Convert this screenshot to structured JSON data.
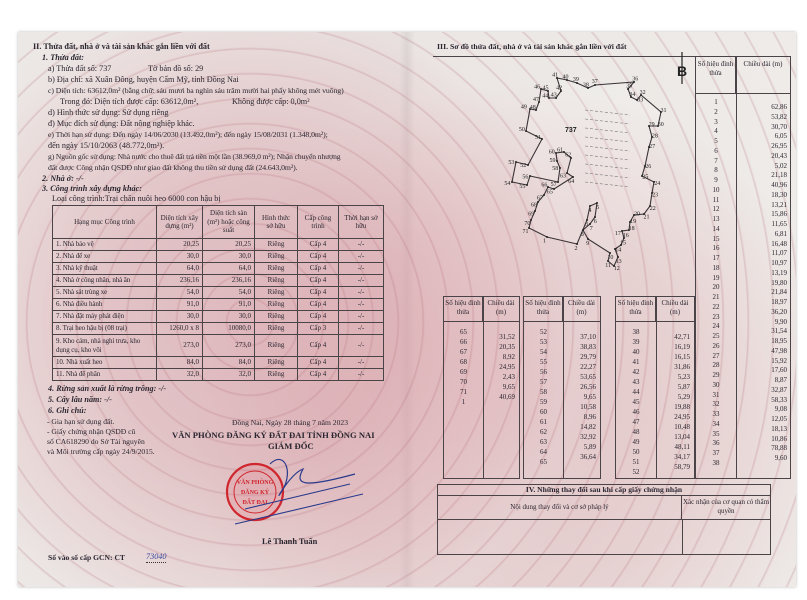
{
  "left": {
    "heading": "II. Thửa đất, nhà ở và tài sản khác gắn liền với đất",
    "s1": "1. Thửa đất:",
    "a": "a) Thửa đất số: 737",
    "a_map": "Tờ bản đồ số: 29",
    "b": "b) Địa chỉ: xã Xuân Đông, huyện Cẩm Mỹ, tỉnh Đồng Nai",
    "c": "c) Diện tích: 63612,0m² (bằng chữ: sáu mươi ba nghìn sáu trăm mười hai phẩy không mét vuông)",
    "c2": "Trong đó: Diện tích được cấp: 63612,0m²,",
    "c3": "Không được cấp: 0,0m²",
    "d": "d) Hình thức sử dụng: Sử dụng riêng",
    "dd": "đ) Mục đích sử dụng: Đất nông nghiệp khác.",
    "e": "e) Thời hạn sử dụng: Đến ngày 14/06/2030 (13.492,0m²); đến ngày 15/08/2031 (1.348,0m²);",
    "e2": "đến ngày 15/10/2063 (48.772,0m²).",
    "g": "g) Nguồn gốc sử dụng: Nhà nước cho thuê đất trả tiền một lần (38.969,0 m²); Nhận chuyển nhượng",
    "g2": "đất được Công nhận QSDĐ như giao đất không thu tiền sử dụng đất (24.643,0m²).",
    "s2": "2. Nhà ở: -/-",
    "s3": "3. Công trình xây dựng khác:",
    "type": "Loại công trình:Trại chăn nuôi heo 6000 con hậu bị",
    "table": {
      "headers": [
        "Hạng mục Công trình",
        "Diện tích xây dựng (m²)",
        "Diện tích sàn (m²) hoặc công suất",
        "Hình thức sở hữu",
        "Cấp công trình",
        "Thời hạn sở hữu"
      ],
      "rows": [
        [
          "1. Nhà bảo vệ",
          "20,25",
          "20,25",
          "Riêng",
          "Cấp 4",
          "-/-"
        ],
        [
          "2. Nhà để xe",
          "30,0",
          "30,0",
          "Riêng",
          "Cấp 4",
          "-/-"
        ],
        [
          "3. Nhà kỹ thuật",
          "64,0",
          "64,0",
          "Riêng",
          "Cấp 4",
          "-/-"
        ],
        [
          "4. Nhà ở công nhân, nhà ăn",
          "236,16",
          "236,16",
          "Riêng",
          "Cấp 4",
          "-/-"
        ],
        [
          "5. Nhà sát trùng xe",
          "54,0",
          "54,0",
          "Riêng",
          "Cấp 4",
          "-/-"
        ],
        [
          "6. Nhà điều hành",
          "91,0",
          "91,0",
          "Riêng",
          "Cấp 4",
          "-/-"
        ],
        [
          "7. Nhà đặt máy phát điện",
          "30,0",
          "30,0",
          "Riêng",
          "Cấp 4",
          "-/-"
        ],
        [
          "8. Trại heo hậu bị (08 trại)",
          "1260,0 x 8",
          "10080,0",
          "Riêng",
          "Cấp 3",
          "-/-"
        ],
        [
          "9. Kho cám, nhà nghỉ trưa, kho dụng cụ, kho vôi",
          "273,0",
          "273,0",
          "Riêng",
          "Cấp 4",
          "-/-"
        ],
        [
          "10. Nhà xuất heo",
          "84,0",
          "84,0",
          "Riêng",
          "Cấp 4",
          "-/-"
        ],
        [
          "11. Nhà để phân",
          "32,0",
          "32,0",
          "Riêng",
          "Cấp 4",
          "-/-"
        ]
      ]
    },
    "s4": "4. Rừng sản xuất là rừng trồng: -/-",
    "s5": "5. Cây lâu năm: -/-",
    "s6": "6. Ghi chú:",
    "n1": "- Gia hạn sử dụng đất.",
    "n2": "- Giấy chứng nhận QSDĐ cũ",
    "n3": "số CA618290 do Sở Tài nguyên",
    "n4": "và Môi trường cấp ngày 24/9/2015.",
    "date": "Đồng Nai, Ngày 28 tháng 7 năm 2023",
    "office": "VĂN PHÒNG ĐĂNG KÝ ĐẤT ĐAI TỈNH ĐỒNG NAI",
    "role": "GIÁM ĐỐC",
    "signer": "Lê Thanh Tuấn",
    "stamp": "VĂN PHÒNG ĐĂNG KÝ ĐẤT ĐAI",
    "reg": "Số vào sổ cấp GCN: CT",
    "reg_no": "73040"
  },
  "right": {
    "heading": "III. Sơ đồ thửa đất, nhà ở và tài sản khác gắn liền với đất",
    "north": "B",
    "parcel": "737",
    "col_h1": "Số hiệu đỉnh thửa",
    "col_h2": "Chiều dài (m)",
    "main_ids": [
      "1",
      "2",
      "3",
      "4",
      "5",
      "6",
      "7",
      "8",
      "9",
      "10",
      "11",
      "12",
      "13",
      "14",
      "15",
      "16",
      "17",
      "18",
      "19",
      "20",
      "21",
      "22",
      "23",
      "24",
      "25",
      "26",
      "27",
      "28",
      "29",
      "30",
      "31",
      "32",
      "33",
      "34",
      "35",
      "36",
      "37",
      "38"
    ],
    "main_len": [
      "62,86",
      "53,82",
      "30,70",
      "6,05",
      "26,95",
      "20,43",
      "5,02",
      "21,18",
      "40,96",
      "18,30",
      "13,21",
      "15,86",
      "11,65",
      "6,81",
      "16,48",
      "11,07",
      "10,97",
      "13,19",
      "19,80",
      "21,84",
      "18,97",
      "36,20",
      "9,90",
      "31,54",
      "18,95",
      "47,98",
      "15,92",
      "17,60",
      "8,87",
      "32,87",
      "58,33",
      "9,08",
      "12,05",
      "18,13",
      "10,86",
      "78,88",
      "9,60"
    ],
    "t1_ids": [
      "65",
      "66",
      "67",
      "68",
      "69",
      "70",
      "71",
      "1"
    ],
    "t1_len": [
      "31,52",
      "20,35",
      "8,92",
      "24,95",
      "2,43",
      "9,65",
      "40,69"
    ],
    "t2_ids": [
      "52",
      "53",
      "54",
      "55",
      "56",
      "57",
      "58",
      "59",
      "60",
      "61",
      "62",
      "63",
      "64",
      "65"
    ],
    "t2_len": [
      "37,10",
      "38,83",
      "29,79",
      "22,27",
      "53,65",
      "26,56",
      "9,65",
      "10,58",
      "8,96",
      "14,82",
      "32,92",
      "5,89",
      "36,64"
    ],
    "t3_ids": [
      "38",
      "39",
      "40",
      "41",
      "42",
      "43",
      "44",
      "45",
      "46",
      "47",
      "48",
      "49",
      "50",
      "51",
      "52"
    ],
    "t3_len": [
      "42,71",
      "16,19",
      "16,15",
      "31,86",
      "5,23",
      "5,87",
      "5,29",
      "19,88",
      "24,95",
      "10,48",
      "13,04",
      "48,11",
      "34,17",
      "58,79"
    ],
    "changes": {
      "title": "IV. Những thay đổi sau khi cấp giấy chứng nhận",
      "col1": "Nội dung thay đổi và cơ sở pháp lý",
      "col2": "Xác nhận của cơ quan có thẩm quyền"
    },
    "vertices": [
      "1",
      "2",
      "3",
      "4",
      "5",
      "6",
      "7",
      "8",
      "9",
      "10",
      "11",
      "12",
      "13",
      "14",
      "15",
      "16",
      "17",
      "18",
      "19",
      "20",
      "21",
      "22",
      "23",
      "24",
      "25",
      "26",
      "27",
      "28",
      "29",
      "30",
      "31",
      "32",
      "33",
      "34",
      "35",
      "36",
      "37",
      "38",
      "39",
      "40",
      "41",
      "42",
      "43",
      "44",
      "45",
      "46",
      "47",
      "48",
      "49",
      "50",
      "51",
      "52",
      "53",
      "54",
      "55",
      "56",
      "57",
      "58",
      "59",
      "60",
      "61",
      "62",
      "63",
      "64",
      "65",
      "66",
      "67",
      "68",
      "69",
      "70",
      "71"
    ]
  },
  "colors": {
    "ink": "#2a2630",
    "stamp": "#d0262e",
    "signature": "#2a3a8c",
    "pattern": "#d6969f"
  }
}
